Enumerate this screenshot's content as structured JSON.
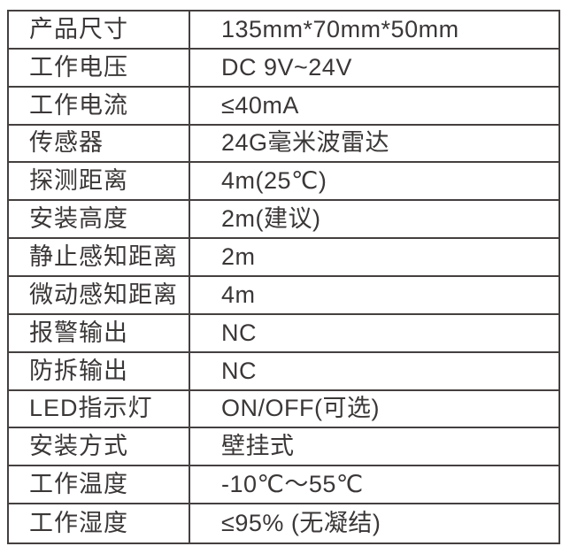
{
  "chart_data": {
    "type": "table",
    "title": "",
    "rows": [
      {
        "label": "产品尺寸",
        "value": "135mm*70mm*50mm"
      },
      {
        "label": "工作电压",
        "value": "DC 9V~24V"
      },
      {
        "label": "工作电流",
        "value": "≤40mA"
      },
      {
        "label": "传感器",
        "value": "24G毫米波雷达"
      },
      {
        "label": "探测距离",
        "value": "4m(25℃)"
      },
      {
        "label": "安装高度",
        "value": "2m(建议)"
      },
      {
        "label": "静止感知距离",
        "value": "2m"
      },
      {
        "label": "微动感知距离",
        "value": "4m"
      },
      {
        "label": "报警输出",
        "value": "NC"
      },
      {
        "label": "防拆输出",
        "value": "NC"
      },
      {
        "label": "LED指示灯",
        "value": "ON/OFF(可选)"
      },
      {
        "label": "安装方式",
        "value": "壁挂式"
      },
      {
        "label": "工作温度",
        "value": "-10℃～55℃"
      },
      {
        "label": "工作湿度",
        "value": "≤95% (无凝结)"
      }
    ],
    "layout": {
      "grid": "on",
      "header_row": false,
      "columns_count": 2
    }
  },
  "colors": {
    "border": "#454040",
    "text": "#3b3737",
    "background": "#ffffff"
  }
}
